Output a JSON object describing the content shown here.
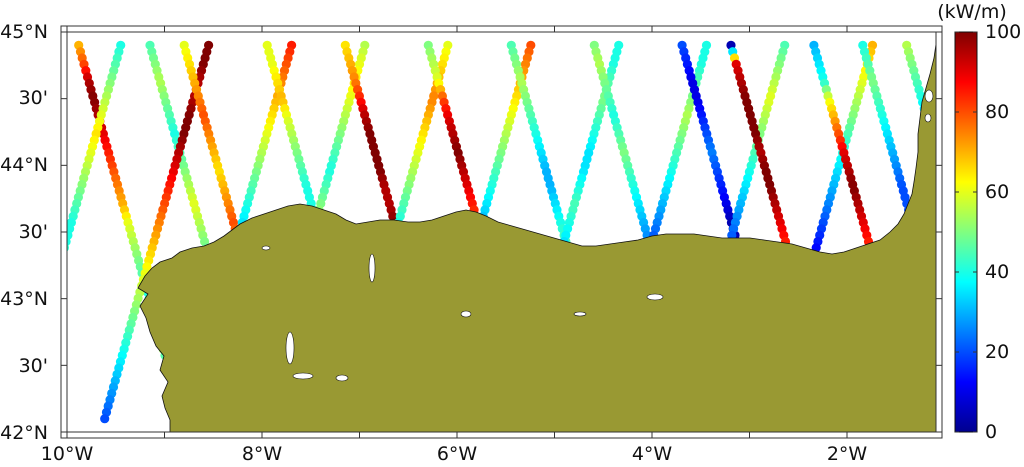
{
  "map": {
    "lat_ticks": [
      "45°N",
      "30'",
      "44°N",
      "30'",
      "43°N",
      "30'",
      "42°N"
    ],
    "lon_ticks": [
      "10°W",
      "8°W",
      "6°W",
      "4°W",
      "2°W"
    ],
    "land_color": "#999933",
    "coast_color": "#111111"
  },
  "colorbar": {
    "unit": "(kW/m)",
    "ticks": [
      "100",
      "80",
      "60",
      "40",
      "20",
      "0"
    ],
    "min": 0,
    "max": 100,
    "colormap": "jet"
  },
  "tracks": [
    {
      "dir": "desc",
      "start_lon": -9.88,
      "power": [
        70,
        80,
        95,
        100,
        95,
        90,
        85,
        80,
        75,
        70,
        60,
        55,
        50,
        45,
        40,
        45,
        50,
        55,
        35,
        30,
        25,
        20
      ]
    },
    {
      "dir": "asc",
      "start_lon": -9.45,
      "power": [
        40,
        45,
        50,
        55,
        60,
        65,
        60,
        55,
        50,
        45,
        40,
        40,
        45,
        50,
        55,
        60,
        65,
        70,
        60,
        55,
        55,
        60
      ]
    },
    {
      "dir": "desc",
      "start_lon": -9.15,
      "power": [
        45,
        50,
        55,
        50,
        45,
        40,
        45,
        50,
        55,
        60,
        55,
        50,
        45,
        40,
        35,
        40,
        45,
        30,
        20,
        10,
        5,
        0
      ]
    },
    {
      "dir": "asc",
      "start_lon": -8.55,
      "power": [
        100,
        100,
        95,
        95,
        100,
        100,
        95,
        90,
        85,
        80,
        75,
        70,
        65,
        60,
        55,
        50,
        45,
        40,
        35,
        30,
        25,
        20
      ]
    },
    {
      "dir": "desc",
      "start_lon": -8.8,
      "power": [
        60,
        65,
        70,
        75,
        80,
        75,
        70,
        65,
        70,
        75,
        80,
        75,
        70,
        60,
        50,
        40,
        35,
        30,
        25,
        20,
        15,
        10
      ]
    },
    {
      "dir": "asc",
      "start_lon": -7.7,
      "power": [
        85,
        80,
        75,
        70,
        65,
        60,
        55,
        50,
        45,
        40,
        35,
        30,
        25,
        20,
        15,
        10,
        5,
        5,
        5,
        5,
        5,
        5
      ]
    },
    {
      "dir": "desc",
      "start_lon": -7.95,
      "power": [
        60,
        60,
        65,
        70,
        60,
        55,
        50,
        45,
        40,
        40,
        45,
        50,
        55,
        60,
        60,
        55,
        50,
        45,
        40,
        35,
        30,
        30
      ]
    },
    {
      "dir": "asc",
      "start_lon": -6.95,
      "power": [
        55,
        60,
        65,
        60,
        55,
        50,
        45,
        40,
        45,
        50,
        55,
        60,
        55,
        50,
        45,
        40,
        35,
        30,
        25,
        20,
        15,
        10
      ]
    },
    {
      "dir": "desc",
      "start_lon": -7.15,
      "power": [
        65,
        70,
        75,
        85,
        95,
        100,
        100,
        100,
        95,
        95,
        100,
        100,
        95,
        90,
        85,
        80,
        80,
        80,
        80,
        80,
        80,
        80
      ]
    },
    {
      "dir": "asc",
      "start_lon": -6.1,
      "power": [
        60,
        65,
        70,
        75,
        70,
        65,
        60,
        55,
        50,
        45,
        40,
        35,
        30,
        25,
        20,
        15,
        10,
        10,
        10,
        10,
        10,
        10
      ]
    },
    {
      "dir": "desc",
      "start_lon": -6.3,
      "power": [
        50,
        55,
        60,
        80,
        90,
        95,
        100,
        95,
        90,
        85,
        80,
        75,
        70,
        65,
        60,
        55,
        50,
        45,
        40,
        40,
        40,
        40
      ]
    },
    {
      "dir": "asc",
      "start_lon": -5.25,
      "power": [
        80,
        75,
        70,
        65,
        60,
        55,
        50,
        45,
        40,
        35,
        30,
        25,
        20,
        15,
        10,
        10,
        10,
        10,
        10,
        10,
        10,
        10
      ]
    },
    {
      "dir": "desc",
      "start_lon": -5.45,
      "power": [
        45,
        50,
        55,
        50,
        45,
        40,
        35,
        30,
        30,
        35,
        40,
        45,
        40,
        35,
        30,
        25,
        20,
        15,
        10,
        10,
        10,
        10
      ]
    },
    {
      "dir": "asc",
      "start_lon": -4.35,
      "power": [
        40,
        40,
        45,
        50,
        45,
        40,
        35,
        35,
        40,
        45,
        40,
        35,
        30,
        25,
        20,
        15,
        10,
        10,
        10,
        10,
        10,
        10
      ]
    },
    {
      "dir": "desc",
      "start_lon": -4.6,
      "power": [
        50,
        55,
        50,
        45,
        40,
        45,
        50,
        45,
        40,
        35,
        30,
        25,
        20,
        15,
        10,
        5,
        5,
        5,
        5,
        5,
        5,
        5
      ]
    },
    {
      "dir": "asc",
      "start_lon": -3.45,
      "power": [
        40,
        40,
        45,
        50,
        55,
        50,
        45,
        40,
        35,
        30,
        25,
        20,
        15,
        10,
        10,
        10,
        10,
        10,
        10,
        10,
        10,
        10
      ]
    },
    {
      "dir": "desc",
      "start_lon": -3.7,
      "power": [
        20,
        15,
        10,
        10,
        15,
        20,
        25,
        20,
        15,
        10,
        5,
        5,
        5,
        10,
        15,
        20,
        25,
        20,
        15,
        10,
        10,
        10
      ]
    },
    {
      "dir": "asc",
      "start_lon": -2.65,
      "power": [
        45,
        50,
        55,
        60,
        55,
        50,
        45,
        40,
        35,
        30,
        25,
        20,
        15,
        10,
        5,
        5,
        5,
        5,
        5,
        5,
        5,
        5
      ]
    },
    {
      "dir": "desc",
      "start_lon": -3.2,
      "power": [
        5,
        90,
        95,
        100,
        100,
        100,
        95,
        100,
        100,
        95,
        90,
        85,
        80,
        75,
        70,
        65,
        60,
        55,
        50,
        45,
        40,
        40
      ]
    },
    {
      "dir": "asc",
      "start_lon": -1.75,
      "power": [
        70,
        65,
        60,
        55,
        50,
        45,
        40,
        35,
        30,
        25,
        20,
        15,
        10,
        5,
        5,
        5,
        5,
        5,
        5,
        5,
        5,
        5
      ]
    },
    {
      "dir": "desc",
      "start_lon": -2.35,
      "power": [
        30,
        35,
        40,
        60,
        70,
        80,
        90,
        95,
        100,
        95,
        90,
        85,
        80,
        70,
        60,
        50,
        40,
        30,
        20,
        10,
        10,
        10
      ]
    },
    {
      "dir": "desc",
      "start_lon": -1.85,
      "power": [
        40,
        45,
        50,
        45,
        40,
        35,
        30,
        25,
        20,
        20,
        20,
        20,
        20,
        20,
        20,
        20,
        20,
        20,
        20,
        20,
        20,
        20
      ]
    },
    {
      "dir": "desc",
      "start_lon": -1.4,
      "power": [
        55,
        50,
        45,
        40,
        30,
        20,
        15,
        10,
        5,
        5,
        5,
        5,
        5,
        5,
        5,
        5,
        5,
        5,
        5,
        5,
        5,
        5
      ]
    }
  ]
}
